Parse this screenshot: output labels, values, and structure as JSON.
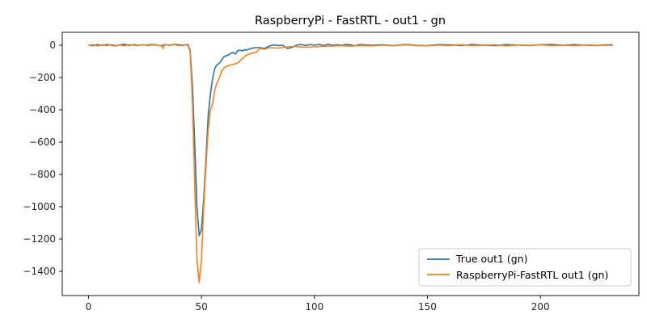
{
  "chart_data": {
    "type": "line",
    "title": "RaspberryPi - FastRTL - out1 - gn",
    "xlabel": "",
    "ylabel": "",
    "xlim": [
      -11.6,
      243.6
    ],
    "ylim": [
      -1550,
      80
    ],
    "xticks": [
      0,
      50,
      100,
      150,
      200
    ],
    "yticks": [
      0,
      -200,
      -400,
      -600,
      -800,
      -1000,
      -1200,
      -1400
    ],
    "xtick_labels": [
      "0",
      "50",
      "100",
      "150",
      "200"
    ],
    "ytick_labels": [
      "0",
      "−200",
      "−400",
      "−600",
      "−800",
      "−1000",
      "−1200",
      "−1400"
    ],
    "grid": false,
    "legend_position": "lower-right",
    "series": [
      {
        "name": "True out1 (gn)",
        "color": "#1f77b4",
        "x": [
          0,
          2,
          4,
          6,
          8,
          10,
          12,
          14,
          16,
          18,
          20,
          22,
          24,
          26,
          28,
          30,
          32,
          34,
          36,
          38,
          40,
          42,
          44,
          45,
          46,
          47,
          48,
          49,
          50,
          51,
          52,
          53,
          54,
          55,
          56,
          57,
          58,
          59,
          60,
          61,
          62,
          63,
          64,
          65,
          66,
          67,
          68,
          69,
          70,
          72,
          74,
          76,
          78,
          80,
          82,
          84,
          86,
          88,
          90,
          92,
          94,
          96,
          98,
          100,
          102,
          104,
          106,
          108,
          110,
          112,
          114,
          116,
          118,
          120,
          125,
          130,
          135,
          140,
          145,
          150,
          155,
          160,
          165,
          170,
          175,
          180,
          185,
          190,
          195,
          200,
          205,
          210,
          215,
          220,
          225,
          230,
          232
        ],
        "values": [
          2,
          -3,
          4,
          -2,
          5,
          0,
          -4,
          3,
          6,
          -2,
          4,
          -1,
          3,
          0,
          5,
          2,
          -3,
          4,
          0,
          6,
          2,
          -1,
          5,
          -30,
          -250,
          -600,
          -1000,
          -1180,
          -1140,
          -950,
          -700,
          -430,
          -300,
          -200,
          -140,
          -120,
          -110,
          -90,
          -70,
          -65,
          -60,
          -50,
          -45,
          -55,
          -35,
          -30,
          -35,
          -28,
          -30,
          -20,
          -15,
          -15,
          -20,
          -5,
          2,
          -2,
          0,
          -20,
          -15,
          0,
          5,
          -2,
          4,
          0,
          5,
          -3,
          6,
          0,
          3,
          -1,
          5,
          2,
          -3,
          4,
          0,
          3,
          -2,
          5,
          0,
          -3,
          4,
          2,
          -2,
          5,
          0,
          -3,
          4,
          1,
          -2,
          3,
          5,
          -1,
          4,
          0,
          -2,
          3,
          2
        ],
        "marks": [
          "True out1 (gn)"
        ]
      },
      {
        "name": "RaspberryPi-FastRTL out1 (gn)",
        "color": "#ff7f0e",
        "x": [
          0,
          2,
          4,
          6,
          8,
          10,
          12,
          14,
          16,
          18,
          20,
          22,
          24,
          26,
          28,
          30,
          32,
          33,
          34,
          36,
          38,
          40,
          42,
          44,
          45,
          46,
          47,
          48,
          49,
          50,
          51,
          52,
          53,
          54,
          55,
          56,
          57,
          58,
          59,
          60,
          62,
          64,
          66,
          68,
          70,
          72,
          74,
          76,
          78,
          80,
          84,
          88,
          92,
          96,
          100,
          104,
          108,
          112,
          116,
          120,
          125,
          130,
          135,
          140,
          145,
          150,
          155,
          160,
          165,
          170,
          175,
          180,
          185,
          190,
          195,
          200,
          205,
          210,
          215,
          220,
          225,
          230,
          232
        ],
        "values": [
          -2,
          3,
          -4,
          2,
          -3,
          4,
          -2,
          1,
          -4,
          3,
          0,
          -2,
          4,
          -3,
          2,
          0,
          -3,
          -20,
          5,
          -2,
          4,
          -3,
          2,
          0,
          -40,
          -350,
          -850,
          -1320,
          -1470,
          -1330,
          -1000,
          -750,
          -520,
          -400,
          -360,
          -270,
          -230,
          -200,
          -160,
          -140,
          -125,
          -120,
          -110,
          -85,
          -60,
          -50,
          -45,
          -20,
          -25,
          -15,
          -18,
          -10,
          -8,
          -12,
          -10,
          -7,
          -5,
          -3,
          -6,
          -2,
          -4,
          0,
          -3,
          2,
          -1,
          -4,
          1,
          -2,
          3,
          -3,
          0,
          2,
          -4,
          1,
          -1,
          3,
          -2,
          0,
          -3,
          2,
          -1,
          0,
          -2
        ],
        "marks": [
          "RaspberryPi-FastRTL out1 (gn)"
        ]
      }
    ]
  }
}
